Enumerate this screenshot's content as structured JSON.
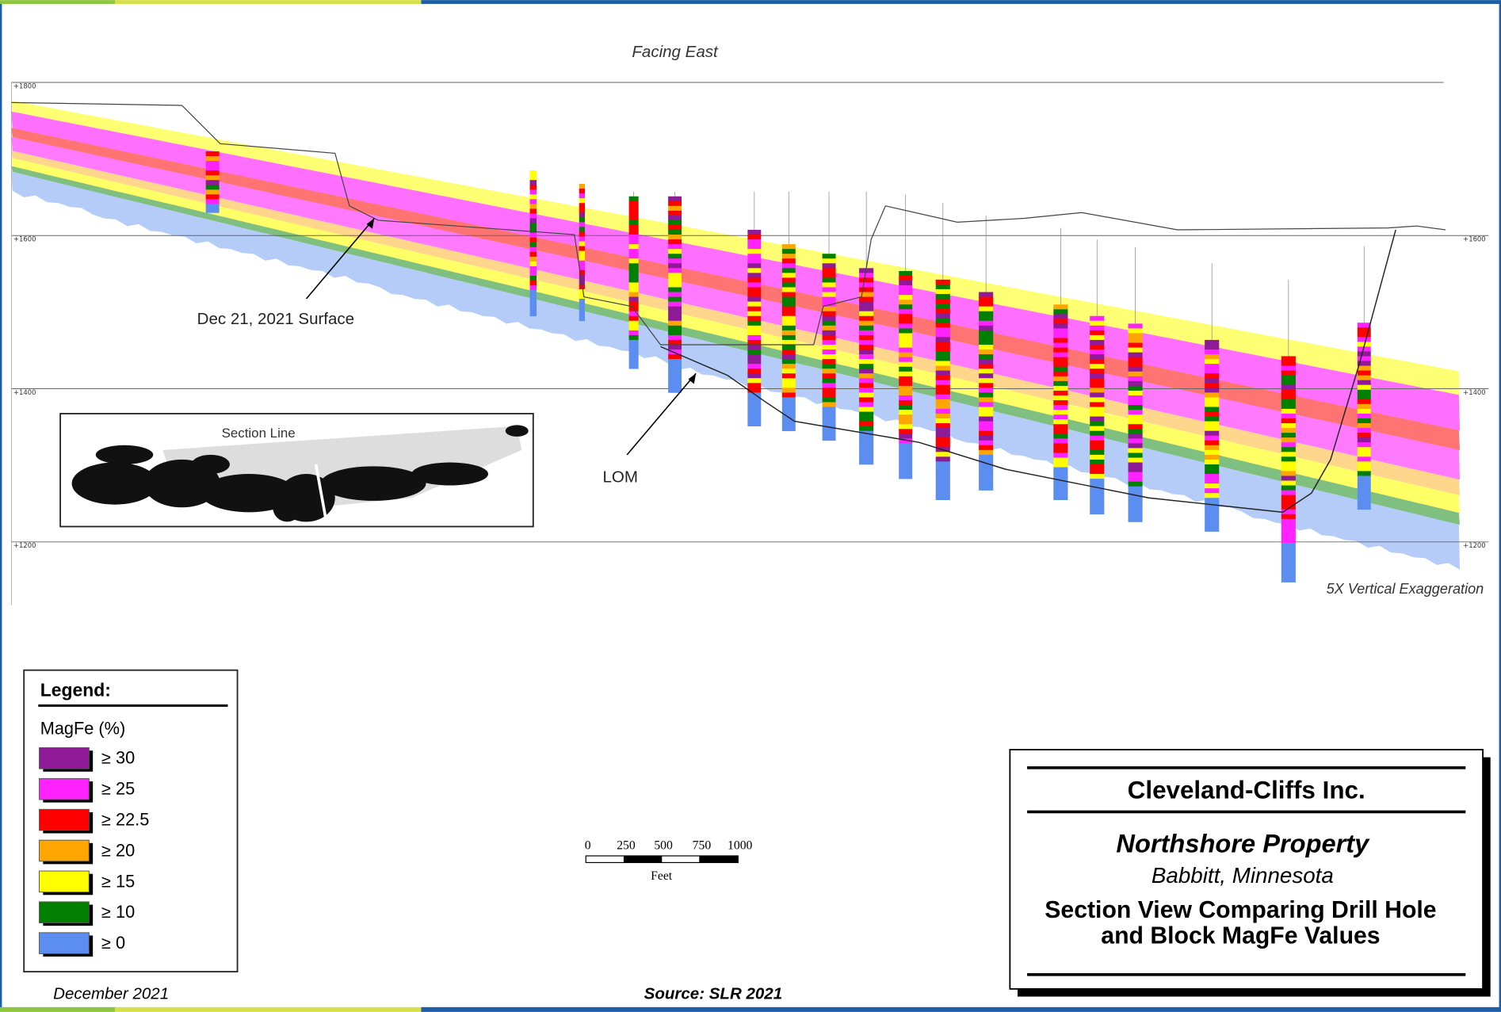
{
  "header": {
    "title": "Facing East"
  },
  "section": {
    "elevations": [
      "+1800",
      "+1600",
      "+1400",
      "+1200"
    ],
    "surface_label": "Dec 21, 2021 Surface",
    "lom_label": "LOM",
    "inset_label": "Section Line",
    "exaggeration": "5X Vertical Exaggeration"
  },
  "legend": {
    "title": "Legend:",
    "subtitle": "MagFe (%)",
    "items": [
      {
        "label": "≥ 30",
        "color": "#8e1a98"
      },
      {
        "label": "≥ 25",
        "color": "#ff22ff"
      },
      {
        "label": "≥ 22.5",
        "color": "#ff0000"
      },
      {
        "label": "≥ 20",
        "color": "#ffa500"
      },
      {
        "label": "≥ 15",
        "color": "#ffff00"
      },
      {
        "label": "≥ 10",
        "color": "#008000"
      },
      {
        "label": "≥ 0",
        "color": "#5b8ef0"
      }
    ]
  },
  "scale_bar": {
    "labels": [
      "0",
      "250",
      "500",
      "750",
      "1000"
    ],
    "unit": "Feet"
  },
  "title_block": {
    "company": "Cleveland-Cliffs Inc.",
    "property": "Northshore Property",
    "location": "Babbitt, Minnesota",
    "caption": [
      "Section View Comparing Drill Hole",
      "and Block MagFe Values"
    ]
  },
  "footer": {
    "date": "December 2021",
    "source": "Source: SLR 2021"
  }
}
